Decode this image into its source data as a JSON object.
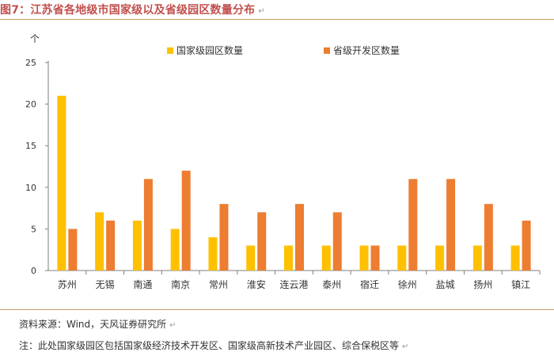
{
  "figure_title": "图7：江苏省各地级市国家级以及省级园区数量分布",
  "source_text": "资料来源：Wind，天风证券研究所",
  "note_text": "注：此处国家级园区包括国家级经济技术开发区、国家级高新技术产业园区、综合保税区等",
  "pilcrow": "↵",
  "chart_data": {
    "type": "bar",
    "unit_label": "个",
    "categories": [
      "苏州",
      "无锡",
      "南通",
      "南京",
      "常州",
      "淮安",
      "连云港",
      "泰州",
      "宿迁",
      "徐州",
      "盐城",
      "扬州",
      "镇江"
    ],
    "series": [
      {
        "name": "国家级园区数量",
        "color": "#ffc000",
        "values": [
          21,
          7,
          6,
          5,
          4,
          3,
          3,
          3,
          3,
          3,
          3,
          3,
          3
        ]
      },
      {
        "name": "省级开发区数量",
        "color": "#ed7d31",
        "values": [
          5,
          6,
          11,
          12,
          8,
          7,
          8,
          7,
          3,
          11,
          11,
          8,
          6
        ]
      }
    ],
    "ylim": [
      0,
      25
    ],
    "yticks": [
      0,
      5,
      10,
      15,
      20,
      25
    ],
    "grid": false,
    "legend": "top-center"
  }
}
